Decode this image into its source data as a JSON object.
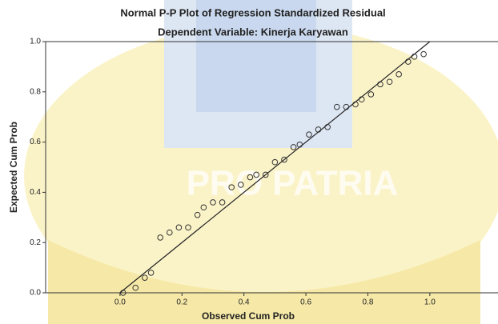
{
  "chart_data": {
    "type": "scatter",
    "title": "Normal P-P Plot of Regression Standardized Residual",
    "subtitle": "Dependent Variable: Kinerja Karyawan",
    "x_label": "Observed Cum Prob",
    "y_label": "Expected Cum Prob",
    "watermark": "PRO PATRIA",
    "color": "#333333",
    "x": [
      0.01,
      0.05,
      0.08,
      0.1,
      0.13,
      0.16,
      0.19,
      0.22,
      0.25,
      0.27,
      0.3,
      0.33,
      0.36,
      0.39,
      0.42,
      0.44,
      0.47,
      0.5,
      0.53,
      0.56,
      0.58,
      0.61,
      0.64,
      0.67,
      0.7,
      0.73,
      0.76,
      0.78,
      0.81,
      0.84,
      0.87,
      0.9,
      0.93,
      0.95,
      0.98
    ],
    "values": [
      0.0,
      0.02,
      0.06,
      0.08,
      0.22,
      0.24,
      0.26,
      0.26,
      0.31,
      0.34,
      0.36,
      0.36,
      0.42,
      0.43,
      0.46,
      0.47,
      0.47,
      0.52,
      0.53,
      0.58,
      0.59,
      0.63,
      0.65,
      0.66,
      0.74,
      0.74,
      0.75,
      0.77,
      0.79,
      0.83,
      0.84,
      0.87,
      0.92,
      0.94,
      0.95
    ],
    "xlim": [
      -0.24,
      1.22
    ],
    "ylim": [
      0,
      1
    ],
    "xticks": [
      {
        "value": 0,
        "label": "0.0"
      },
      0.2,
      0.4,
      0.6,
      0.8,
      {
        "value": 1,
        "label": "1.0"
      }
    ],
    "yticks": [
      {
        "value": 0,
        "label": "0.0"
      },
      0.2,
      0.4,
      0.6,
      0.8,
      {
        "value": 1,
        "label": "1.0"
      }
    ]
  }
}
